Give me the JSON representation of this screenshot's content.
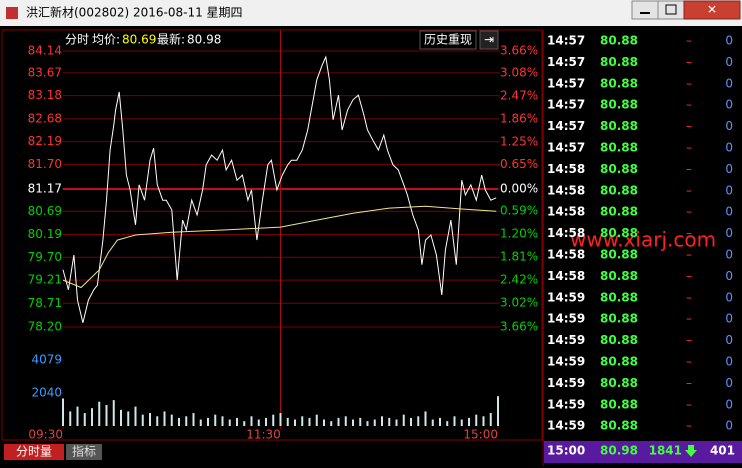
{
  "window": {
    "title": "洪汇新材(002802) 2016-08-11 星期四"
  },
  "header": {
    "mode": "分时",
    "avg_label": "均价:",
    "avg": "80.69",
    "last_label": "最新:",
    "last": "80.98",
    "button": "历史重现"
  },
  "chart_data": [
    {
      "type": "line",
      "up_color": "#ff3232",
      "down_color": "#00d000",
      "flat_color": "#ffffff",
      "grid": true,
      "xlim": [
        0,
        240
      ],
      "ylim": [
        78.2,
        84.14
      ],
      "yticks": [
        84.14,
        83.67,
        83.18,
        82.68,
        82.19,
        {
          "value": 81.7,
          "label": "81.70"
        },
        81.17,
        80.69,
        80.19,
        {
          "value": 79.7,
          "label": "79.70"
        },
        79.21,
        78.71,
        {
          "value": 78.2,
          "label": "78.20"
        }
      ],
      "y2lim": [
        -3.66,
        3.66
      ],
      "y2ticks": [
        {
          "value": 3.66,
          "label": "3.66%"
        },
        {
          "value": 3.08,
          "label": "3.08%"
        },
        {
          "value": 2.47,
          "label": "2.47%"
        },
        {
          "value": 1.86,
          "label": "1.86%"
        },
        {
          "value": 1.25,
          "label": "1.25%"
        },
        {
          "value": 0.65,
          "label": "0.65%"
        },
        {
          "value": 0,
          "label": "0.00%"
        },
        {
          "value": -0.59,
          "label": "0.59%"
        },
        {
          "value": -1.2,
          "label": "1.20%"
        },
        {
          "value": -1.81,
          "label": "1.81%"
        },
        {
          "value": -2.42,
          "label": "2.42%"
        },
        {
          "value": -3.02,
          "label": "3.02%"
        },
        {
          "value": -3.66,
          "label": "3.66%"
        }
      ],
      "series": [
        {
          "color": "#ffffff",
          "x": [
            0,
            3,
            6,
            8,
            11,
            14,
            17,
            19,
            22,
            24,
            26,
            28,
            29,
            31,
            33,
            35,
            37,
            40,
            42,
            45,
            48,
            50,
            52,
            55,
            57,
            60,
            63,
            66,
            68,
            71,
            74,
            77,
            79,
            82,
            85,
            88,
            90,
            93,
            96,
            99,
            102,
            104,
            107,
            110,
            113,
            115,
            118,
            121,
            124,
            126,
            129,
            132,
            135,
            137,
            140,
            143,
            145,
            147,
            149,
            152,
            154,
            157,
            160,
            163,
            166,
            168,
            171,
            174,
            177,
            179,
            182,
            185,
            188,
            190,
            193,
            196,
            198,
            200,
            203,
            206,
            209,
            211,
            214,
            217,
            220,
            222,
            225,
            228,
            231,
            233,
            236,
            239
          ],
          "values": [
            79.43,
            79.0,
            79.75,
            78.78,
            78.29,
            78.78,
            79.0,
            79.1,
            80.07,
            80.93,
            82.01,
            82.55,
            82.87,
            83.26,
            82.44,
            81.47,
            81.15,
            80.4,
            81.26,
            80.93,
            81.79,
            82.05,
            81.26,
            80.93,
            80.93,
            80.72,
            79.21,
            80.5,
            80.29,
            80.93,
            80.61,
            81.15,
            81.69,
            81.9,
            81.79,
            82.01,
            81.58,
            81.79,
            81.36,
            81.47,
            80.93,
            81.15,
            80.07,
            80.93,
            81.69,
            81.79,
            81.15,
            81.47,
            81.69,
            81.79,
            81.79,
            82.01,
            82.44,
            82.87,
            83.52,
            83.84,
            84.01,
            83.52,
            82.66,
            83.19,
            82.44,
            82.87,
            83.09,
            83.19,
            82.76,
            82.44,
            82.22,
            82.01,
            82.33,
            82.01,
            81.69,
            81.58,
            81.26,
            81.04,
            80.61,
            80.29,
            79.54,
            80.07,
            80.18,
            79.75,
            78.89,
            79.86,
            80.5,
            79.54,
            81.36,
            81.04,
            81.26,
            80.93,
            81.47,
            81.15,
            80.93,
            80.98
          ]
        },
        {
          "color": "#f0e68c",
          "x": [
            0,
            10,
            20,
            25,
            30,
            40,
            60,
            90,
            120,
            140,
            160,
            180,
            200,
            220,
            239
          ],
          "values": [
            79.21,
            79.05,
            79.43,
            79.8,
            80.07,
            80.18,
            80.24,
            80.29,
            80.35,
            80.5,
            80.65,
            80.76,
            80.8,
            80.74,
            80.69
          ]
        }
      ]
    },
    {
      "type": "bar",
      "color": "#cfe8e8",
      "xlim": [
        0,
        240
      ],
      "ylim": [
        0,
        6120
      ],
      "yticks": [
        2040,
        4079
      ],
      "xticks": [
        {
          "value": 0,
          "label": "09:30"
        },
        {
          "value": 120,
          "label": "11:30"
        },
        {
          "value": 240,
          "label": "15:00"
        }
      ],
      "x": [
        0,
        4,
        8,
        12,
        16,
        20,
        24,
        28,
        32,
        36,
        40,
        44,
        48,
        52,
        56,
        60,
        64,
        68,
        72,
        76,
        80,
        84,
        88,
        92,
        96,
        100,
        104,
        108,
        112,
        116,
        120,
        124,
        128,
        132,
        136,
        140,
        144,
        148,
        152,
        156,
        160,
        164,
        168,
        172,
        176,
        180,
        184,
        188,
        192,
        196,
        200,
        204,
        208,
        212,
        216,
        220,
        224,
        228,
        232,
        236,
        240
      ],
      "values": [
        1700,
        900,
        1200,
        800,
        1100,
        1500,
        1300,
        1600,
        1000,
        900,
        1200,
        700,
        800,
        600,
        900,
        700,
        500,
        600,
        800,
        400,
        500,
        700,
        600,
        400,
        500,
        300,
        600,
        400,
        500,
        700,
        800,
        500,
        400,
        600,
        500,
        700,
        400,
        300,
        500,
        600,
        400,
        500,
        300,
        400,
        600,
        500,
        400,
        700,
        500,
        600,
        900,
        400,
        500,
        300,
        600,
        400,
        500,
        700,
        600,
        800,
        1841
      ]
    }
  ],
  "trades": {
    "rows": [
      [
        "14:57",
        "80.88",
        "–",
        "0"
      ],
      [
        "14:57",
        "80.88",
        "–",
        "0"
      ],
      [
        "14:57",
        "80.88",
        "–",
        "0"
      ],
      [
        "14:57",
        "80.88",
        "–",
        "0"
      ],
      [
        "14:57",
        "80.88",
        "–",
        "0"
      ],
      [
        "14:57",
        "80.88",
        "–",
        "0"
      ],
      [
        "14:58",
        "80.88",
        "–",
        "0"
      ],
      [
        "14:58",
        "80.88",
        "–",
        "0"
      ],
      [
        "14:58",
        "80.88",
        "–",
        "0"
      ],
      [
        "14:58",
        "80.88",
        "–",
        "0"
      ],
      [
        "14:58",
        "80.88",
        "–",
        "0"
      ],
      [
        "14:58",
        "80.88",
        "–",
        "0"
      ],
      [
        "14:59",
        "80.88",
        "–",
        "0"
      ],
      [
        "14:59",
        "80.88",
        "–",
        "0"
      ],
      [
        "14:59",
        "80.88",
        "–",
        "0"
      ],
      [
        "14:59",
        "80.88",
        "–",
        "0"
      ],
      [
        "14:59",
        "80.88",
        "–",
        "0"
      ],
      [
        "14:59",
        "80.88",
        "–",
        "0"
      ],
      [
        "14:59",
        "80.88",
        "–",
        "0"
      ]
    ],
    "last": [
      "15:00",
      "80.98",
      "1841",
      "401"
    ]
  },
  "watermark": "www.xiarj.com",
  "tabs": [
    "分时量",
    "指标"
  ]
}
